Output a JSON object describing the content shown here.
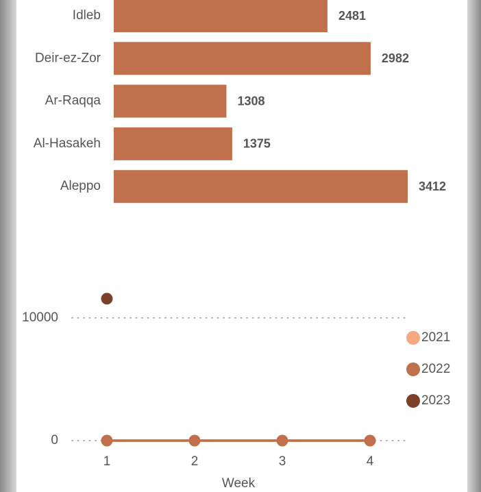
{
  "chart_data": [
    {
      "type": "hbar",
      "categories": [
        "Idleb",
        "Deir-ez-Zor",
        "Ar-Raqqa",
        "Al-Hasakeh",
        "Aleppo"
      ],
      "values": [
        2481,
        2982,
        1308,
        1375,
        3412
      ],
      "color": "#c0704a",
      "xlim": [
        0,
        3412
      ]
    },
    {
      "type": "line",
      "x": [
        1,
        2,
        3,
        4
      ],
      "xlim": [
        0.6,
        4.4
      ],
      "xticks": [
        1,
        2,
        3,
        4
      ],
      "ylim": [
        0,
        12000
      ],
      "yticks": [
        0,
        10000
      ],
      "x_label": "Week",
      "grid": true,
      "legend": "right",
      "series": [
        {
          "name": "2021",
          "color": "#f7a883",
          "values": [
            0,
            0,
            0,
            0
          ]
        },
        {
          "name": "2022",
          "color": "#c0704a",
          "values": [
            0,
            0,
            0,
            0
          ]
        },
        {
          "name": "2023",
          "color": "#7a4128",
          "values": [
            11560,
            null,
            null,
            null
          ]
        }
      ]
    }
  ]
}
